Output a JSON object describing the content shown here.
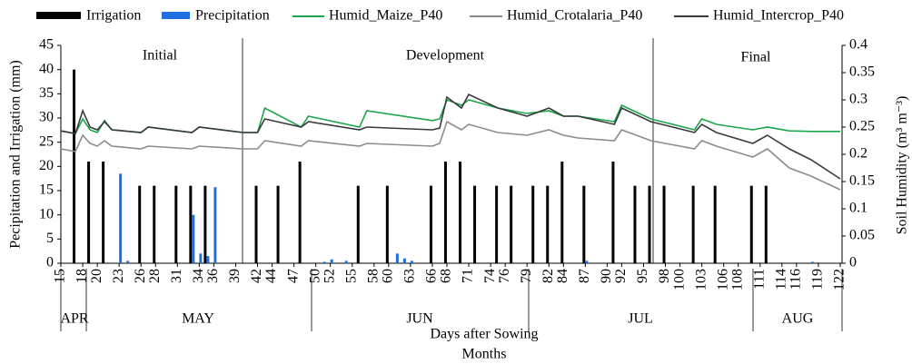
{
  "chart_data": {
    "type": "bar-line",
    "x_axis_label": "Days after Sowing",
    "x_axis_label_2": "Months",
    "y_axis_label": "Pecipitation and Irrigation (mm)",
    "y2_axis_label": "Soil Humidity (m³ m⁻³)",
    "phases": [
      "Initial",
      "Development",
      "Final"
    ],
    "months": [
      "APR",
      "MAY",
      "JUN",
      "JUL",
      "AUG"
    ],
    "xlim": [
      15,
      122
    ],
    "xticks": [
      15,
      18,
      20,
      23,
      26,
      28,
      31,
      34,
      36,
      39,
      42,
      44,
      47,
      50,
      52,
      55,
      58,
      60,
      63,
      66,
      68,
      71,
      74,
      76,
      79,
      82,
      84,
      87,
      90,
      92,
      95,
      98,
      100,
      103,
      106,
      108,
      111,
      114,
      116,
      119,
      122
    ],
    "ylim": [
      0,
      45
    ],
    "yticks": [
      0,
      5,
      10,
      15,
      20,
      25,
      30,
      35,
      40,
      45
    ],
    "y2lim": [
      0,
      0.4
    ],
    "y2ticks": [
      0,
      0.05,
      0.1,
      0.15,
      0.2,
      0.25,
      0.3,
      0.35,
      0.4
    ],
    "x": [
      15,
      17,
      18,
      19,
      20,
      21,
      22,
      26,
      27,
      33,
      34,
      40,
      42,
      43,
      48,
      49,
      56,
      57,
      66,
      67,
      68,
      70,
      71,
      75,
      79,
      82,
      84,
      86,
      91,
      92,
      96,
      102,
      103,
      105,
      110,
      112,
      115,
      118,
      122
    ],
    "series": [
      {
        "name": "Irrigation",
        "color": "#000000",
        "kind": "bar",
        "x": [
          17,
          19,
          21,
          26,
          28,
          31,
          33,
          35,
          42,
          45,
          48,
          56,
          60,
          66,
          68,
          70,
          72,
          75,
          77,
          80,
          82,
          84,
          87,
          91,
          94,
          96,
          98,
          102,
          105,
          110,
          112
        ],
        "values": [
          40,
          21,
          21,
          16,
          16,
          16,
          16,
          16,
          16,
          16,
          21,
          16,
          16,
          16,
          21,
          21,
          16,
          16,
          16,
          16,
          16,
          21,
          16,
          21,
          16,
          16,
          16,
          16,
          16,
          16,
          16
        ]
      },
      {
        "name": "Precipitation",
        "color": "#1f6fe0",
        "kind": "bar",
        "x": [
          23,
          24,
          33,
          34,
          35,
          36,
          51,
          52,
          54,
          61,
          62,
          63,
          87,
          118
        ],
        "values": [
          18.5,
          0.5,
          10,
          2,
          1.5,
          15.7,
          0.3,
          0.8,
          0.5,
          2,
          1,
          0.5,
          0.5,
          0.3
        ]
      },
      {
        "name": "Humid_Maize_P40",
        "color": "#1aa64a",
        "kind": "line",
        "axis": "y2",
        "values": [
          0.243,
          0.238,
          0.265,
          0.245,
          0.24,
          0.262,
          0.245,
          0.24,
          0.25,
          0.24,
          0.25,
          0.24,
          0.24,
          0.285,
          0.25,
          0.27,
          0.25,
          0.28,
          0.262,
          0.265,
          0.3,
          0.29,
          0.3,
          0.285,
          0.275,
          0.28,
          0.27,
          0.27,
          0.26,
          0.29,
          0.265,
          0.245,
          0.265,
          0.255,
          0.245,
          0.25,
          0.243,
          0.242,
          0.242
        ]
      },
      {
        "name": "Humid_Crotalaria_P40",
        "color": "#8c8c8c",
        "kind": "line",
        "axis": "y2",
        "values": [
          0.21,
          0.205,
          0.235,
          0.22,
          0.215,
          0.225,
          0.215,
          0.21,
          0.215,
          0.21,
          0.215,
          0.21,
          0.21,
          0.225,
          0.215,
          0.225,
          0.215,
          0.22,
          0.215,
          0.22,
          0.26,
          0.245,
          0.255,
          0.24,
          0.235,
          0.245,
          0.235,
          0.23,
          0.225,
          0.245,
          0.225,
          0.21,
          0.225,
          0.215,
          0.195,
          0.21,
          0.175,
          0.16,
          0.135
        ]
      },
      {
        "name": "Humid_Intercrop_P40",
        "color": "#3a3a3a",
        "kind": "line",
        "axis": "y2",
        "values": [
          0.243,
          0.238,
          0.28,
          0.25,
          0.245,
          0.26,
          0.245,
          0.24,
          0.25,
          0.24,
          0.25,
          0.24,
          0.24,
          0.265,
          0.25,
          0.26,
          0.245,
          0.25,
          0.245,
          0.248,
          0.305,
          0.285,
          0.31,
          0.285,
          0.27,
          0.285,
          0.27,
          0.27,
          0.255,
          0.285,
          0.26,
          0.24,
          0.255,
          0.24,
          0.22,
          0.235,
          0.21,
          0.19,
          0.155
        ]
      }
    ]
  }
}
